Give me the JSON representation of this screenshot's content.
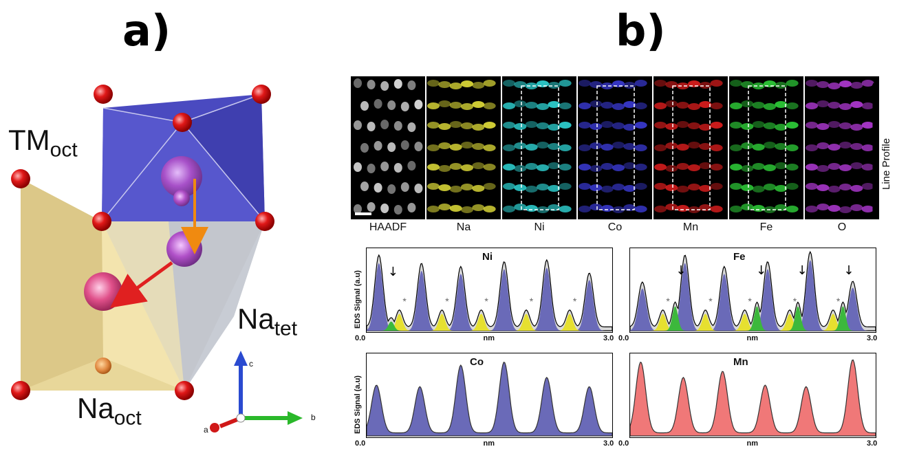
{
  "panel_a": {
    "label": "a)",
    "tm_main": "TM",
    "tm_sub": "oct",
    "natet_main": "Na",
    "natet_sub": "tet",
    "naoct_main": "Na",
    "naoct_sub": "oct",
    "axes": {
      "c": "c",
      "b": "b",
      "a": "a"
    }
  },
  "panel_b": {
    "label": "b)",
    "maps": [
      {
        "label": "HAADF",
        "color": "#e8e8e8",
        "boxed": false
      },
      {
        "label": "Na",
        "color": "#e3e03a",
        "boxed": false
      },
      {
        "label": "Ni",
        "color": "#2fd6d6",
        "boxed": true
      },
      {
        "label": "Co",
        "color": "#3b3bd6",
        "boxed": true
      },
      {
        "label": "Mn",
        "color": "#e01e1e",
        "boxed": true
      },
      {
        "label": "Fe",
        "color": "#2fd23a",
        "boxed": true
      },
      {
        "label": "O",
        "color": "#b23ad6",
        "boxed": false
      }
    ],
    "line_profile_label": "Line Profile"
  },
  "chart_data": [
    {
      "type": "area",
      "title": "Ni",
      "xlabel": "nm",
      "ylabel": "EDS Signal (a.u)",
      "xlim": [
        0.0,
        3.0
      ],
      "x_tick_labels": [
        "0.0",
        "3.0"
      ],
      "peaks_main_nm": [
        0.15,
        0.67,
        1.15,
        1.68,
        2.2,
        2.72
      ],
      "peaks_minor_yellow_nm": [
        0.4,
        0.92,
        1.4,
        1.95,
        2.48
      ],
      "peaks_minor_green_nm": [
        0.3
      ],
      "markers": [
        "↓",
        "*"
      ],
      "colors": {
        "main": "#6a6ab8",
        "yellow": "#e6e030",
        "green": "#3cb83c",
        "envelope": "#d8d8d8"
      }
    },
    {
      "type": "area",
      "title": "Fe",
      "xlabel": "nm",
      "ylabel": "",
      "xlim": [
        0.0,
        3.0
      ],
      "x_tick_labels": [
        "0.0",
        "3.0"
      ],
      "peaks_main_nm": [
        0.15,
        0.67,
        1.15,
        1.68,
        2.2,
        2.72
      ],
      "peaks_minor_yellow_nm": [
        0.4,
        0.92,
        1.4,
        1.95,
        2.48
      ],
      "peaks_minor_green_nm": [
        0.55,
        1.55,
        2.05,
        2.6
      ],
      "markers": [
        "↓",
        "*"
      ],
      "colors": {
        "main": "#6a6ab8",
        "yellow": "#e6e030",
        "green": "#3cb83c",
        "envelope": "#d8d8d8"
      }
    },
    {
      "type": "area",
      "title": "Co",
      "xlabel": "nm",
      "ylabel": "EDS Signal (a.u)",
      "xlim": [
        0.0,
        3.0
      ],
      "x_tick_labels": [
        "0.0",
        "3.0"
      ],
      "peaks_nm": [
        0.12,
        0.65,
        1.15,
        1.68,
        2.2,
        2.72
      ],
      "peak_heights": [
        0.62,
        0.6,
        0.88,
        0.92,
        0.72,
        0.6
      ],
      "colors": {
        "fill": "#6a6ab8"
      }
    },
    {
      "type": "area",
      "title": "Mn",
      "xlabel": "nm",
      "ylabel": "",
      "xlim": [
        0.0,
        3.0
      ],
      "x_tick_labels": [
        "0.0",
        "3.0"
      ],
      "peaks_nm": [
        0.13,
        0.65,
        1.13,
        1.65,
        2.15,
        2.72
      ],
      "peak_heights": [
        0.92,
        0.72,
        0.8,
        0.62,
        0.6,
        0.95
      ],
      "colors": {
        "fill": "#f07878"
      }
    }
  ]
}
